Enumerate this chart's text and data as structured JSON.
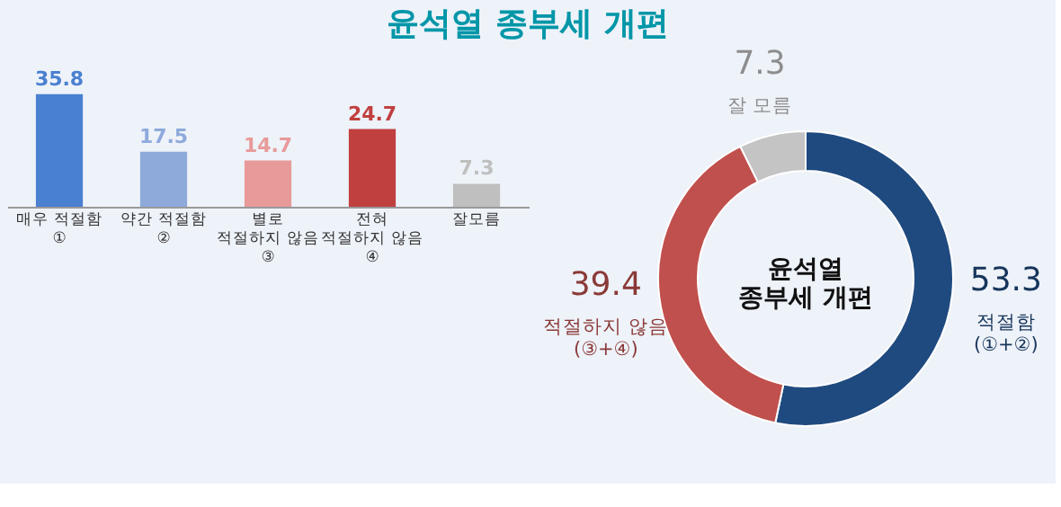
{
  "chart_data": [
    {
      "type": "bar",
      "title": "윤석열 종부세 개편",
      "categories": [
        "매우 적절함\n①",
        "약간 적절함\n②",
        "별로\n적절하지 않음\n③",
        "전혀\n적절하지 않음\n④",
        "잘모름"
      ],
      "values": [
        35.8,
        17.5,
        14.7,
        24.7,
        7.3
      ],
      "colors": [
        "#4a80d0",
        "#8eaadb",
        "#e89a9a",
        "#c0403f",
        "#bfbfbf"
      ],
      "data_labels": true
    },
    {
      "type": "donut",
      "categories": [
        "적절함\n(①+②)",
        "적절하지 않음\n(③+④)",
        "잘 모름"
      ],
      "values": [
        53.3,
        39.4,
        7.3
      ],
      "colors": [
        "#1f4a7f",
        "#c0504d",
        "#c4c4c4"
      ],
      "data_labels": true,
      "annotations": [
        "윤석열\n종부세 개편"
      ]
    }
  ]
}
